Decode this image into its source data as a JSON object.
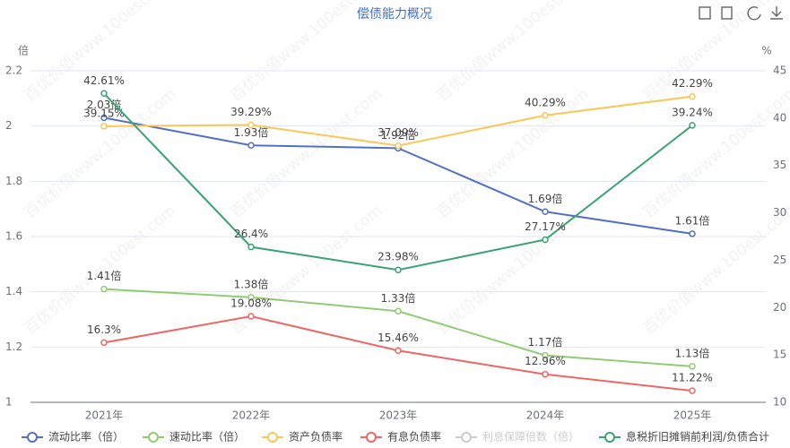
{
  "chart_data": {
    "type": "line",
    "title": "偿债能力概况",
    "ylabel": "倍",
    "y2label": "%",
    "watermark": "百优价值www.100est.com",
    "categories": [
      "2021年",
      "2022年",
      "2023年",
      "2024年",
      "2025年"
    ],
    "ylim": [
      1,
      2.2
    ],
    "yticks": [
      1,
      1.2,
      1.4,
      1.6,
      1.8,
      2,
      2.2
    ],
    "y2lim": [
      10,
      45
    ],
    "y2ticks": [
      10,
      15,
      20,
      25,
      30,
      35,
      40,
      45
    ],
    "grid": true,
    "legend": "bottom",
    "series": [
      {
        "name": "流动比率（倍）",
        "color": "#5470c6",
        "values": [
          2.03,
          1.93,
          1.92,
          1.69,
          1.61
        ],
        "value_labels": [
          "2.03倍",
          "1.93倍",
          "1.92倍",
          "1.69倍",
          "1.61倍"
        ]
      },
      {
        "name": "速动比率（倍）",
        "color": "#91cc75",
        "values": [
          1.41,
          1.38,
          1.33,
          1.17,
          1.13
        ],
        "value_labels": [
          "1.41倍",
          "1.38倍",
          "1.33倍",
          "1.17倍",
          "1.13倍"
        ]
      },
      {
        "name": "资产负债率",
        "color": "#fac858",
        "axis": "y2",
        "values": [
          39.15,
          39.29,
          37.09,
          40.29,
          42.29
        ],
        "value_labels": [
          "39.15%",
          "39.29%",
          "37.09%",
          "40.29%",
          "42.29%"
        ]
      },
      {
        "name": "有息负债率",
        "color": "#ee6666",
        "axis": "y2",
        "values": [
          16.3,
          19.08,
          15.46,
          12.96,
          11.22
        ],
        "value_labels": [
          "16.3%",
          "19.08%",
          "15.46%",
          "12.96%",
          "11.22%"
        ]
      },
      {
        "name": "利息保障倍数（倍）",
        "selected": false,
        "values": [
          null,
          null,
          null,
          null,
          null
        ]
      },
      {
        "name": "息税折旧摊销前利润/负债合计",
        "color": "#3ba272",
        "axis": "y2",
        "values": [
          42.61,
          26.4,
          23.98,
          27.17,
          39.24
        ],
        "value_labels": [
          "42.61%",
          "26.4%",
          "23.98%",
          "27.17%",
          "39.24%"
        ]
      }
    ]
  }
}
